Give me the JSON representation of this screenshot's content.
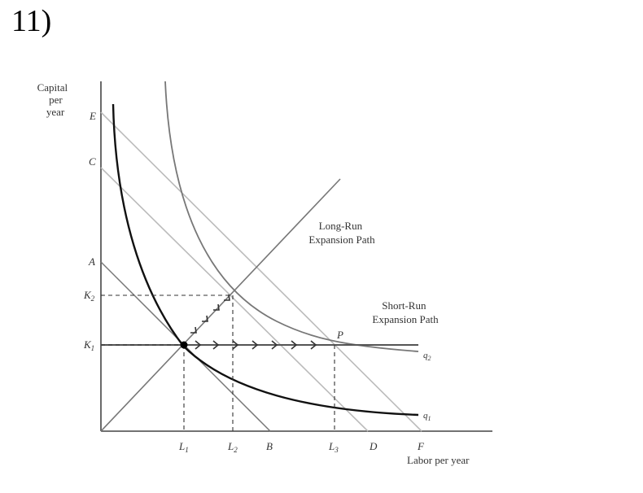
{
  "question_number": "11)",
  "axes": {
    "y_label_lines": [
      "Capital",
      "per",
      "year"
    ],
    "x_label": "Labor per year"
  },
  "y_ticks": {
    "E": "E",
    "C": "C",
    "A": "A",
    "K2": "K",
    "K2_sub": "2",
    "K1": "K",
    "K1_sub": "1"
  },
  "x_ticks": {
    "L1": "L",
    "L1_sub": "1",
    "L2": "L",
    "L2_sub": "2",
    "B": "B",
    "L3": "L",
    "L3_sub": "3",
    "D": "D",
    "F": "F"
  },
  "annotations": {
    "long_run_lines": [
      "Long-Run",
      "Expansion Path"
    ],
    "short_run_lines": [
      "Short-Run",
      "Expansion Path"
    ],
    "point_P": "P",
    "q1": "q",
    "q1_sub": "1",
    "q2": "q",
    "q2_sub": "2"
  }
}
